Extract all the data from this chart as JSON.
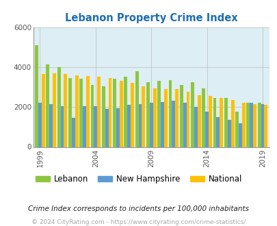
{
  "title": "Lebanon Property Crime Index",
  "years": [
    1999,
    2000,
    2001,
    2002,
    2003,
    2004,
    2005,
    2006,
    2007,
    2008,
    2009,
    2010,
    2011,
    2012,
    2013,
    2014,
    2015,
    2016,
    2017,
    2018,
    2019
  ],
  "lebanon": [
    5100,
    4150,
    4000,
    3450,
    3400,
    3100,
    3050,
    3400,
    3500,
    3800,
    3250,
    3300,
    3350,
    3100,
    3250,
    2950,
    2450,
    2450,
    1750,
    2200,
    2200
  ],
  "new_hampshire": [
    2200,
    2150,
    2050,
    1450,
    2050,
    2050,
    1900,
    1950,
    2100,
    2150,
    2200,
    2250,
    2300,
    2200,
    2000,
    1750,
    1500,
    1350,
    1200,
    2200,
    2150
  ],
  "national": [
    3650,
    3700,
    3650,
    3600,
    3550,
    3500,
    3450,
    3300,
    3200,
    3050,
    2950,
    2900,
    2900,
    2750,
    2600,
    2550,
    2450,
    2350,
    2200,
    2150,
    2100
  ],
  "lebanon_color": "#8dc63f",
  "nh_color": "#5b9bd5",
  "national_color": "#ffc000",
  "bg_color": "#ddeef4",
  "title_color": "#1e6eb4",
  "ylim": [
    0,
    6000
  ],
  "yticks": [
    0,
    2000,
    4000,
    6000
  ],
  "tick_years": [
    1999,
    2004,
    2009,
    2014,
    2019
  ],
  "xlabel_note": "Crime Index corresponds to incidents per 100,000 inhabitants",
  "footer": "© 2024 CityRating.com - https://www.cityrating.com/crime-statistics/",
  "bar_width": 0.3,
  "gridcolor": "#bbbbbb",
  "legend_labels": [
    "Lebanon",
    "New Hampshire",
    "National"
  ],
  "legend_fontsize": 8.5,
  "note_fontsize": 7.5,
  "footer_fontsize": 6.5
}
